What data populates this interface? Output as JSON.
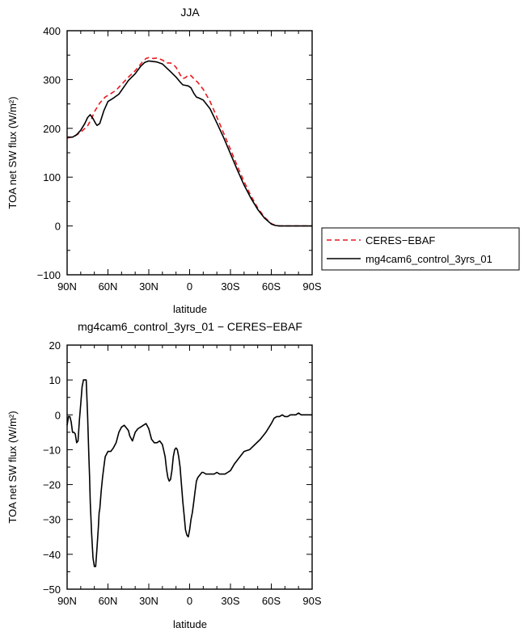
{
  "chart_data": [
    {
      "type": "line",
      "title": "JJA",
      "xlabel": "latitude",
      "ylabel": "TOA net SW flux (W/m²)",
      "xlim": [
        90,
        -90
      ],
      "ylim": [
        -100,
        400
      ],
      "x_tick_values": [
        90,
        60,
        30,
        0,
        -30,
        -60,
        -90
      ],
      "x_tick_labels": [
        "90N",
        "60N",
        "30N",
        "0",
        "30S",
        "60S",
        "90S"
      ],
      "y_tick_values": [
        -100,
        0,
        100,
        200,
        300,
        400
      ],
      "y_tick_labels": [
        "−100",
        "0",
        "100",
        "200",
        "300",
        "400"
      ],
      "legend_position": "right",
      "series": [
        {
          "name": "CERES−EBAF",
          "color": "#e8191e",
          "dash": "dashed",
          "x": [
            90,
            85,
            80,
            75,
            72,
            70,
            66,
            62,
            58,
            54,
            50,
            45,
            40,
            35,
            32,
            30,
            27,
            24,
            20,
            17,
            14,
            12,
            10,
            7,
            5,
            3,
            1,
            -1,
            -3,
            -6,
            -10,
            -15,
            -20,
            -25,
            -30,
            -35,
            -40,
            -45,
            -50,
            -55,
            -60,
            -63,
            -66,
            -70,
            -75,
            -80,
            -85,
            -90
          ],
          "y": [
            180,
            183,
            192,
            205,
            220,
            234,
            252,
            264,
            271,
            278,
            290,
            305,
            318,
            335,
            343,
            345,
            343,
            344,
            340,
            334,
            334,
            331,
            325,
            310,
            302,
            304,
            309,
            308,
            302,
            294,
            280,
            255,
            223,
            190,
            157,
            123,
            91,
            62,
            37,
            18,
            5,
            1,
            0,
            0,
            0,
            0,
            0,
            0
          ]
        },
        {
          "name": "mg4cam6_control_3yrs_01",
          "color": "#000000",
          "dash": "solid",
          "x": [
            90,
            86,
            83,
            80,
            77,
            75,
            73,
            71,
            69,
            68,
            66,
            63,
            60,
            56,
            52,
            48,
            45,
            40,
            36,
            33,
            30,
            27,
            24,
            20,
            17,
            14,
            10,
            7,
            5,
            3,
            1,
            -1,
            -3,
            -5,
            -7,
            -10,
            -15,
            -20,
            -25,
            -30,
            -35,
            -40,
            -45,
            -50,
            -55,
            -60,
            -63,
            -66,
            -70,
            -75,
            -80,
            -85,
            -90
          ],
          "y": [
            182,
            182,
            187,
            196,
            210,
            222,
            228,
            220,
            210,
            206,
            210,
            236,
            255,
            262,
            270,
            286,
            298,
            312,
            327,
            335,
            338,
            337,
            336,
            332,
            324,
            316,
            305,
            295,
            289,
            288,
            287,
            283,
            272,
            264,
            262,
            258,
            240,
            211,
            181,
            148,
            115,
            84,
            57,
            34,
            16,
            4,
            1,
            0,
            0,
            0,
            0,
            0,
            0
          ]
        }
      ]
    },
    {
      "type": "line",
      "title": "mg4cam6_control_3yrs_01 − CERES−EBAF",
      "xlabel": "latitude",
      "ylabel": "TOA net SW flux (W/m²)",
      "xlim": [
        90,
        -90
      ],
      "ylim": [
        -50,
        20
      ],
      "x_tick_values": [
        90,
        60,
        30,
        0,
        -30,
        -60,
        -90
      ],
      "x_tick_labels": [
        "90N",
        "60N",
        "30N",
        "0",
        "30S",
        "60S",
        "90S"
      ],
      "y_tick_values": [
        -50,
        -40,
        -30,
        -20,
        -10,
        0,
        10,
        20
      ],
      "y_tick_labels": [
        "−50",
        "−40",
        "−30",
        "−20",
        "−10",
        "0",
        "10",
        "20"
      ],
      "series": [
        {
          "color": "#000000",
          "dash": "solid",
          "x": [
            90,
            89,
            88,
            87,
            86,
            85,
            84,
            83,
            82,
            81,
            80,
            79,
            78,
            77,
            76,
            75,
            74,
            73.5,
            73,
            72,
            71,
            70,
            69,
            68,
            67,
            66.5,
            66,
            65,
            64,
            63,
            62,
            60,
            58,
            56,
            54,
            52,
            50,
            48,
            47,
            46,
            45,
            44,
            42,
            40,
            38,
            36,
            34,
            32,
            30,
            29,
            28,
            27,
            26,
            25,
            24,
            22,
            20,
            18,
            17,
            16,
            15,
            14,
            13,
            12,
            11,
            10,
            9,
            8,
            7,
            6,
            5,
            4,
            3,
            2,
            1,
            0,
            -1,
            -2,
            -3,
            -4,
            -5,
            -6,
            -7,
            -8,
            -9,
            -10,
            -12,
            -14,
            -16,
            -18,
            -20,
            -22,
            -24,
            -26,
            -28,
            -30,
            -33,
            -36,
            -40,
            -44,
            -48,
            -52,
            -56,
            -60,
            -62,
            -64,
            -66,
            -68,
            -70,
            -72,
            -74,
            -76,
            -78,
            -80,
            -82,
            -84,
            -86,
            -88,
            -90
          ],
          "y": [
            -3,
            -0.5,
            -0.5,
            -2,
            -5,
            -5,
            -5.5,
            -8,
            -7.5,
            -1.5,
            3,
            8,
            10,
            10,
            10,
            0,
            -12,
            -18,
            -25,
            -34,
            -41,
            -43.5,
            -43.5,
            -38,
            -32,
            -28,
            -27,
            -22,
            -18,
            -15,
            -12,
            -10.5,
            -10.5,
            -9.5,
            -8,
            -5,
            -3.5,
            -3,
            -3.5,
            -4,
            -4.5,
            -6,
            -7.5,
            -5,
            -4,
            -3.5,
            -3,
            -2.5,
            -4,
            -5.5,
            -7,
            -7.5,
            -8,
            -8,
            -8,
            -7.5,
            -8.5,
            -12,
            -15.5,
            -18,
            -19,
            -18.5,
            -16,
            -12,
            -10,
            -9.5,
            -10,
            -12,
            -15,
            -20,
            -25,
            -29,
            -33,
            -34.5,
            -35,
            -33,
            -30,
            -28,
            -25,
            -22,
            -19,
            -18,
            -17.5,
            -17,
            -16.5,
            -16.5,
            -17,
            -17,
            -17,
            -17,
            -16.5,
            -17,
            -17,
            -17,
            -16.5,
            -16,
            -14,
            -12.5,
            -10.5,
            -10,
            -8.5,
            -7,
            -5,
            -2.5,
            -1,
            -0.5,
            -0.5,
            0,
            -0.5,
            -0.5,
            0,
            0,
            0,
            0.5,
            0,
            0,
            0,
            0,
            0
          ]
        }
      ]
    }
  ],
  "legend": {
    "entries": [
      "CERES−EBAF",
      "mg4cam6_control_3yrs_01"
    ]
  }
}
